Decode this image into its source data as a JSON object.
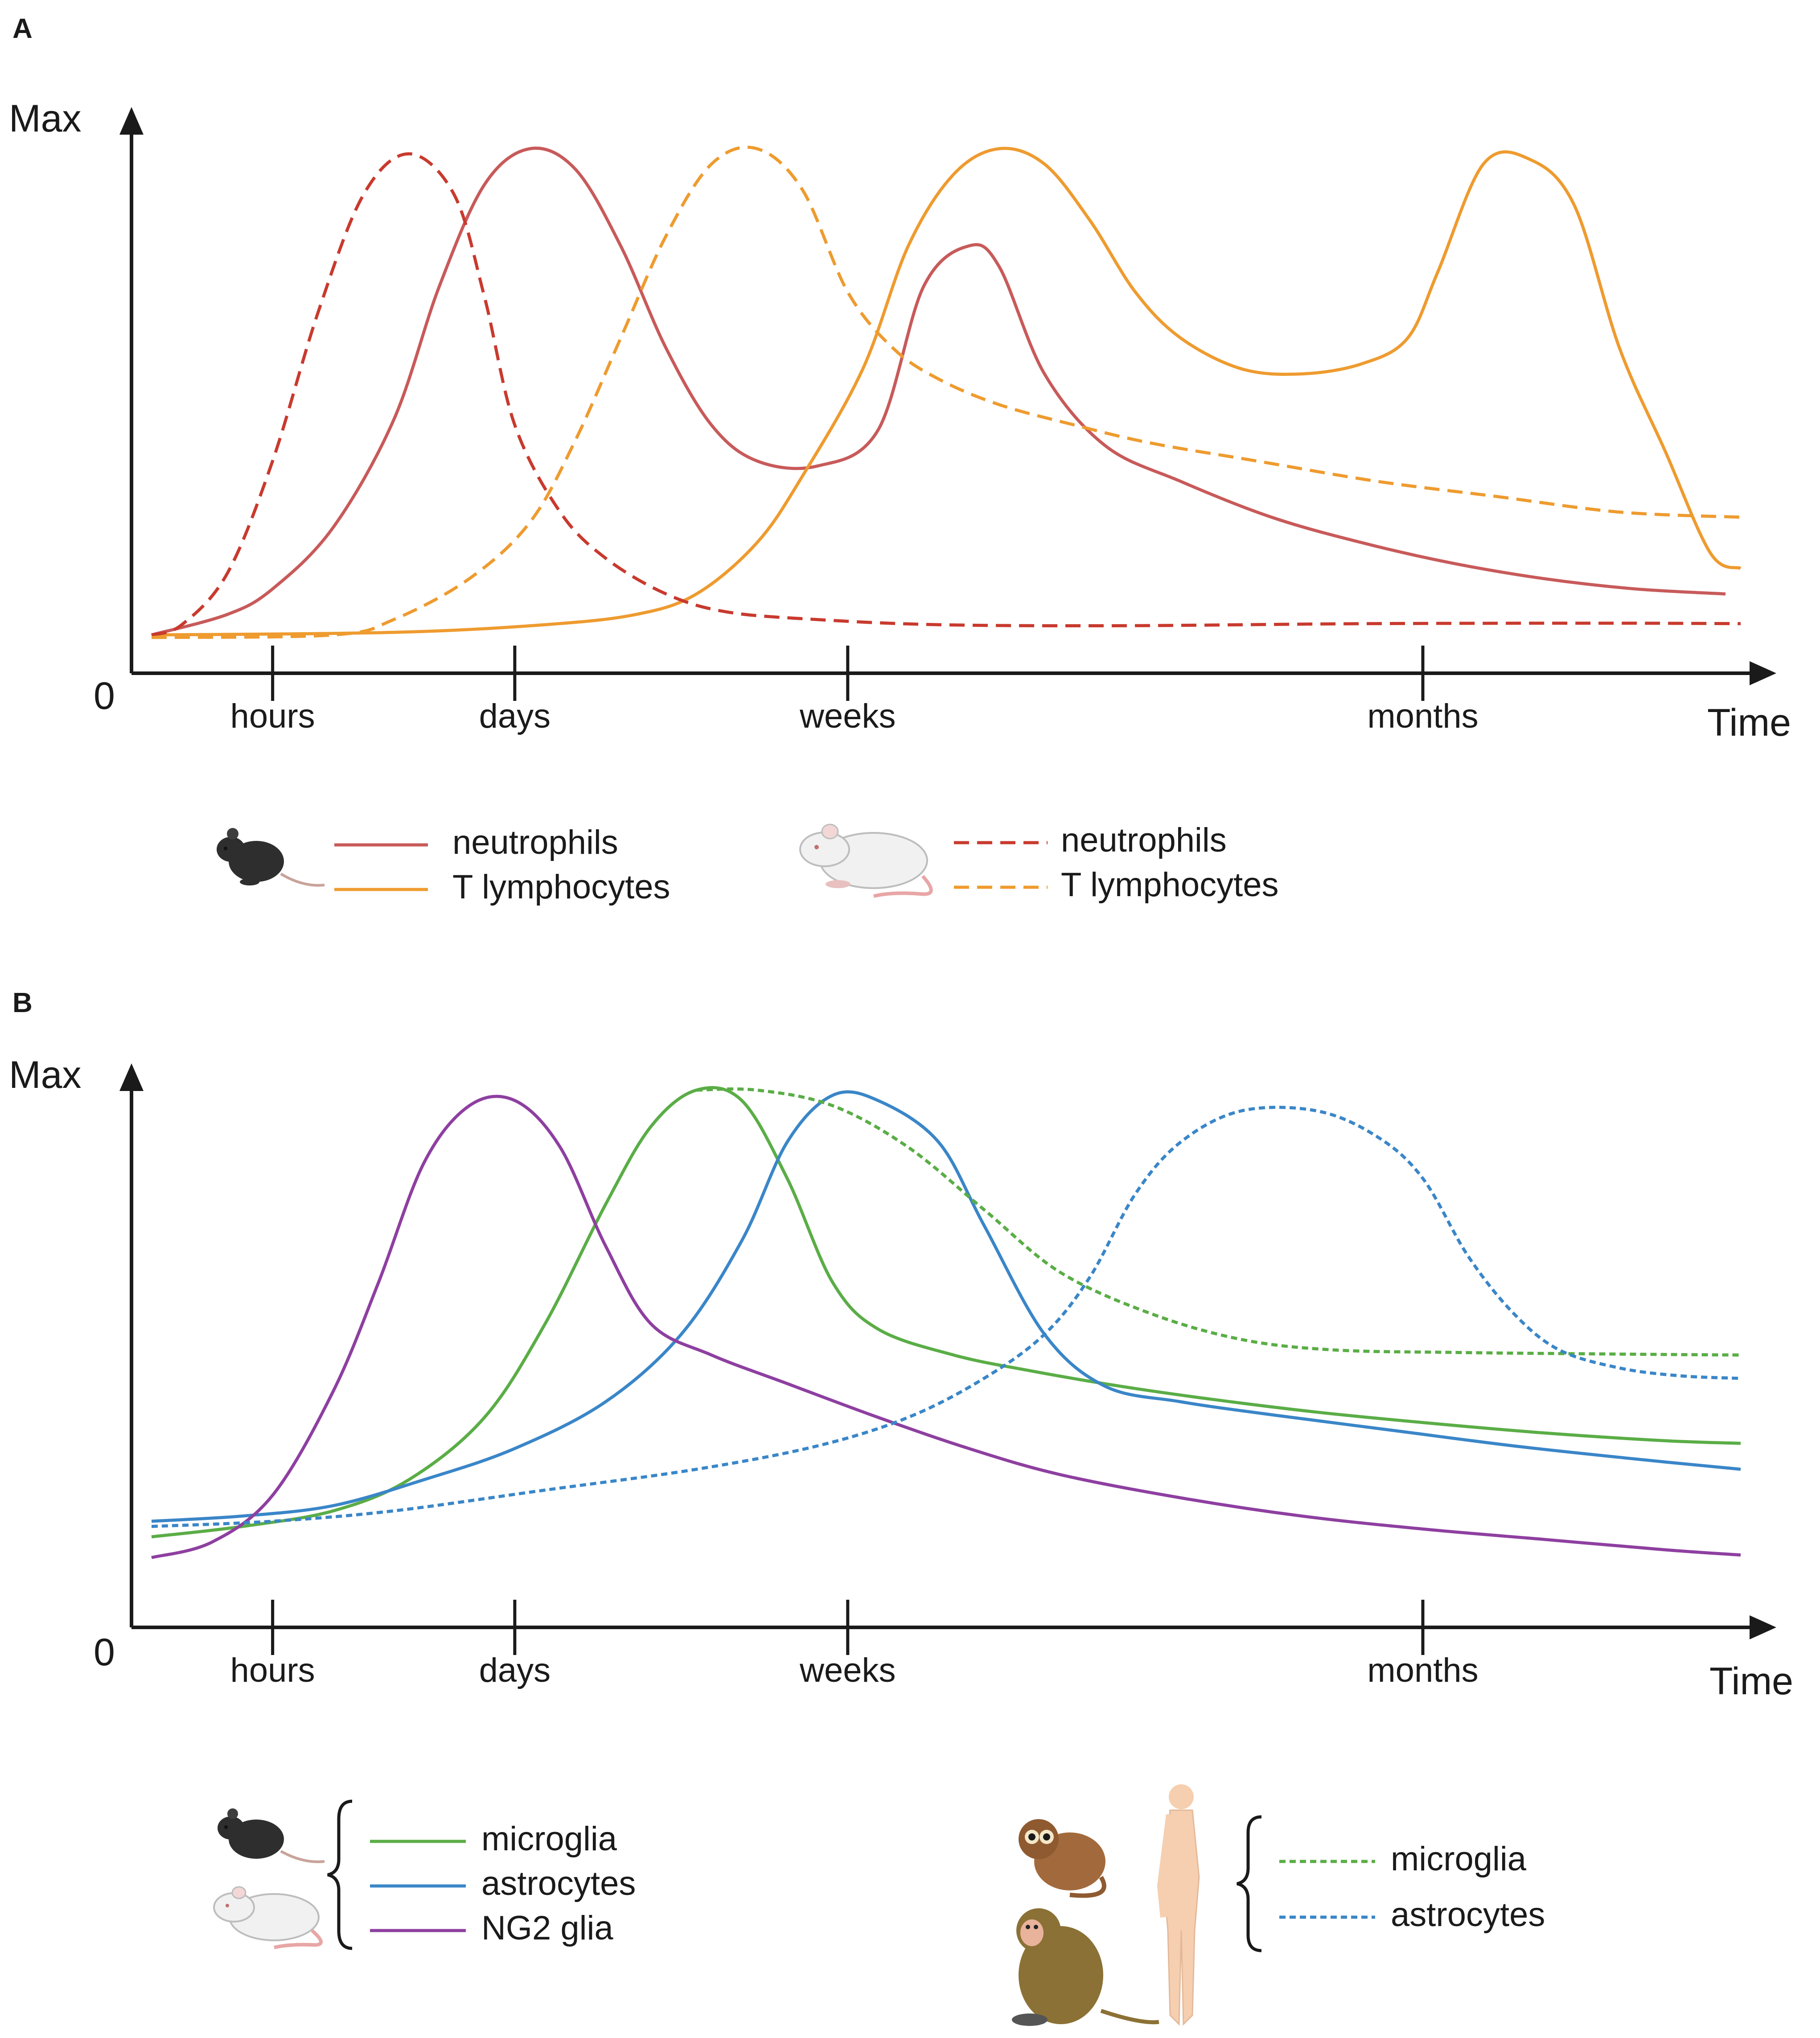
{
  "chart_data": [
    {
      "panel": "A",
      "type": "line",
      "ylabel_max": "Max",
      "ylabel_zero": "0",
      "xlabel": "Time",
      "ylim": [
        0,
        100
      ],
      "xticks": [
        "hours",
        "days",
        "weeks",
        "months"
      ],
      "xtick_pos": [
        0.6,
        1.4,
        2.5,
        4.4
      ],
      "xlim": [
        0.2,
        5.45
      ],
      "series": [
        {
          "name": "neutrophils",
          "species": "mouse",
          "style": "solid",
          "color": "#c85a5a",
          "points": [
            [
              0.2,
              4
            ],
            [
              0.45,
              8
            ],
            [
              0.6,
              13
            ],
            [
              0.8,
              25
            ],
            [
              1.0,
              46
            ],
            [
              1.15,
              72
            ],
            [
              1.3,
              92
            ],
            [
              1.45,
              99
            ],
            [
              1.6,
              95
            ],
            [
              1.75,
              80
            ],
            [
              1.9,
              60
            ],
            [
              2.05,
              45
            ],
            [
              2.2,
              38
            ],
            [
              2.4,
              37
            ],
            [
              2.6,
              44
            ],
            [
              2.75,
              72
            ],
            [
              2.9,
              80
            ],
            [
              3.0,
              76
            ],
            [
              3.15,
              55
            ],
            [
              3.35,
              41
            ],
            [
              3.6,
              34
            ],
            [
              3.9,
              27
            ],
            [
              4.2,
              22
            ],
            [
              4.5,
              18
            ],
            [
              4.8,
              15
            ],
            [
              5.1,
              13
            ],
            [
              5.4,
              12
            ]
          ]
        },
        {
          "name": "T lymphocytes",
          "species": "mouse",
          "style": "solid",
          "color": "#ee9b2f",
          "points": [
            [
              0.2,
              4
            ],
            [
              1.0,
              4.5
            ],
            [
              1.5,
              6
            ],
            [
              1.8,
              8
            ],
            [
              2.0,
              12
            ],
            [
              2.2,
              22
            ],
            [
              2.35,
              35
            ],
            [
              2.55,
              56
            ],
            [
              2.7,
              80
            ],
            [
              2.85,
              94
            ],
            [
              3.0,
              99
            ],
            [
              3.15,
              96
            ],
            [
              3.3,
              85
            ],
            [
              3.45,
              71
            ],
            [
              3.6,
              62
            ],
            [
              3.8,
              56
            ],
            [
              4.0,
              55
            ],
            [
              4.2,
              57
            ],
            [
              4.35,
              62
            ],
            [
              4.45,
              75
            ],
            [
              4.6,
              96
            ],
            [
              4.75,
              97
            ],
            [
              4.9,
              88
            ],
            [
              5.05,
              60
            ],
            [
              5.2,
              40
            ],
            [
              5.35,
              20
            ],
            [
              5.45,
              17
            ]
          ]
        },
        {
          "name": "neutrophils",
          "species": "rat",
          "style": "dashed",
          "color": "#c83a2e",
          "points": [
            [
              0.2,
              4
            ],
            [
              0.3,
              6
            ],
            [
              0.45,
              16
            ],
            [
              0.6,
              38
            ],
            [
              0.75,
              67
            ],
            [
              0.9,
              90
            ],
            [
              1.05,
              98
            ],
            [
              1.2,
              90
            ],
            [
              1.3,
              70
            ],
            [
              1.4,
              45
            ],
            [
              1.55,
              28
            ],
            [
              1.7,
              19
            ],
            [
              1.9,
              12
            ],
            [
              2.1,
              8.5
            ],
            [
              2.4,
              7
            ],
            [
              2.8,
              6
            ],
            [
              3.4,
              5.8
            ],
            [
              4.2,
              6.2
            ],
            [
              5.0,
              6.3
            ],
            [
              5.45,
              6.2
            ]
          ]
        },
        {
          "name": "T lymphocytes",
          "species": "rat",
          "style": "dashed",
          "color": "#ee9b2f",
          "points": [
            [
              0.2,
              3.5
            ],
            [
              0.8,
              4
            ],
            [
              1.0,
              7
            ],
            [
              1.25,
              15
            ],
            [
              1.45,
              26
            ],
            [
              1.6,
              42
            ],
            [
              1.75,
              62
            ],
            [
              1.9,
              82
            ],
            [
              2.05,
              96
            ],
            [
              2.2,
              99
            ],
            [
              2.35,
              91
            ],
            [
              2.5,
              71
            ],
            [
              2.65,
              60
            ],
            [
              2.8,
              54
            ],
            [
              3.0,
              49
            ],
            [
              3.25,
              45
            ],
            [
              3.5,
              41.5
            ],
            [
              3.85,
              38
            ],
            [
              4.25,
              34
            ],
            [
              4.65,
              31
            ],
            [
              5.05,
              28
            ],
            [
              5.45,
              27
            ]
          ]
        }
      ],
      "legend": {
        "mouse": [
          "neutrophils",
          "T lymphocytes"
        ],
        "rat": [
          "neutrophils",
          "T lymphocytes"
        ]
      }
    },
    {
      "panel": "B",
      "type": "line",
      "ylabel_max": "Max",
      "ylabel_zero": "0",
      "xlabel": "Time",
      "ylim": [
        0,
        100
      ],
      "xticks": [
        "hours",
        "days",
        "weeks",
        "months"
      ],
      "xtick_pos": [
        0.6,
        1.4,
        2.5,
        4.4
      ],
      "xlim": [
        0.2,
        5.45
      ],
      "series": [
        {
          "name": "microglia",
          "species": "rodent",
          "style": "solid",
          "color": "#5aad46",
          "points": [
            [
              0.2,
              14
            ],
            [
              0.5,
              16
            ],
            [
              0.8,
              19
            ],
            [
              1.05,
              25
            ],
            [
              1.3,
              37
            ],
            [
              1.5,
              55
            ],
            [
              1.7,
              78
            ],
            [
              1.85,
              93
            ],
            [
              2.0,
              100
            ],
            [
              2.15,
              98
            ],
            [
              2.3,
              83
            ],
            [
              2.45,
              63
            ],
            [
              2.6,
              54
            ],
            [
              2.85,
              49
            ],
            [
              3.1,
              46
            ],
            [
              3.4,
              43
            ],
            [
              3.7,
              40.5
            ],
            [
              4.05,
              38
            ],
            [
              4.4,
              36
            ],
            [
              4.8,
              34
            ],
            [
              5.2,
              32.5
            ],
            [
              5.45,
              32
            ]
          ]
        },
        {
          "name": "astrocytes",
          "species": "rodent",
          "style": "solid",
          "color": "#3a86c8",
          "points": [
            [
              0.2,
              17
            ],
            [
              0.5,
              18
            ],
            [
              0.8,
              20
            ],
            [
              1.1,
              25
            ],
            [
              1.4,
              31
            ],
            [
              1.7,
              40
            ],
            [
              1.95,
              53
            ],
            [
              2.15,
              71
            ],
            [
              2.3,
              90
            ],
            [
              2.45,
              99
            ],
            [
              2.6,
              98
            ],
            [
              2.8,
              90
            ],
            [
              2.95,
              74
            ],
            [
              3.15,
              53
            ],
            [
              3.35,
              43
            ],
            [
              3.6,
              40
            ],
            [
              3.9,
              37.5
            ],
            [
              4.3,
              34.5
            ],
            [
              4.7,
              31.5
            ],
            [
              5.1,
              29
            ],
            [
              5.45,
              27
            ]
          ]
        },
        {
          "name": "NG2 glia",
          "species": "rodent",
          "style": "solid",
          "color": "#8e3fa0",
          "points": [
            [
              0.2,
              10
            ],
            [
              0.4,
              13
            ],
            [
              0.6,
              22
            ],
            [
              0.8,
              42
            ],
            [
              0.95,
              63
            ],
            [
              1.1,
              86
            ],
            [
              1.25,
              97
            ],
            [
              1.4,
              98
            ],
            [
              1.55,
              89
            ],
            [
              1.7,
              70
            ],
            [
              1.85,
              55
            ],
            [
              2.05,
              49
            ],
            [
              2.3,
              43.5
            ],
            [
              2.6,
              37
            ],
            [
              2.9,
              31
            ],
            [
              3.2,
              26
            ],
            [
              3.6,
              21.5
            ],
            [
              4.0,
              18
            ],
            [
              4.4,
              15.5
            ],
            [
              4.8,
              13.5
            ],
            [
              5.2,
              11.5
            ],
            [
              5.45,
              10.5
            ]
          ]
        },
        {
          "name": "microglia",
          "species": "primate/human",
          "style": "dotted",
          "color": "#5aad46",
          "points": [
            [
              2.0,
              100
            ],
            [
              2.2,
              100
            ],
            [
              2.45,
              97
            ],
            [
              2.7,
              89
            ],
            [
              2.95,
              77
            ],
            [
              3.2,
              65
            ],
            [
              3.5,
              57
            ],
            [
              3.8,
              52
            ],
            [
              4.1,
              50
            ],
            [
              4.5,
              49.5
            ],
            [
              5.0,
              49.2
            ],
            [
              5.45,
              49
            ]
          ]
        },
        {
          "name": "astrocytes",
          "species": "primate/human",
          "style": "dotted",
          "color": "#3a86c8",
          "points": [
            [
              0.2,
              16
            ],
            [
              0.6,
              17
            ],
            [
              1.0,
              19
            ],
            [
              1.5,
              23
            ],
            [
              2.0,
              27
            ],
            [
              2.4,
              31.5
            ],
            [
              2.7,
              37
            ],
            [
              2.95,
              44.5
            ],
            [
              3.15,
              53
            ],
            [
              3.3,
              64
            ],
            [
              3.45,
              80
            ],
            [
              3.6,
              90
            ],
            [
              3.8,
              96
            ],
            [
              4.05,
              96
            ],
            [
              4.25,
              91
            ],
            [
              4.4,
              83
            ],
            [
              4.55,
              68
            ],
            [
              4.7,
              57
            ],
            [
              4.85,
              50
            ],
            [
              5.05,
              46.5
            ],
            [
              5.25,
              45
            ],
            [
              5.45,
              44.5
            ]
          ]
        }
      ],
      "legend": {
        "rodent": [
          "microglia",
          "astrocytes",
          "NG2 glia"
        ],
        "primate_human": [
          "microglia",
          "astrocytes"
        ]
      }
    }
  ]
}
